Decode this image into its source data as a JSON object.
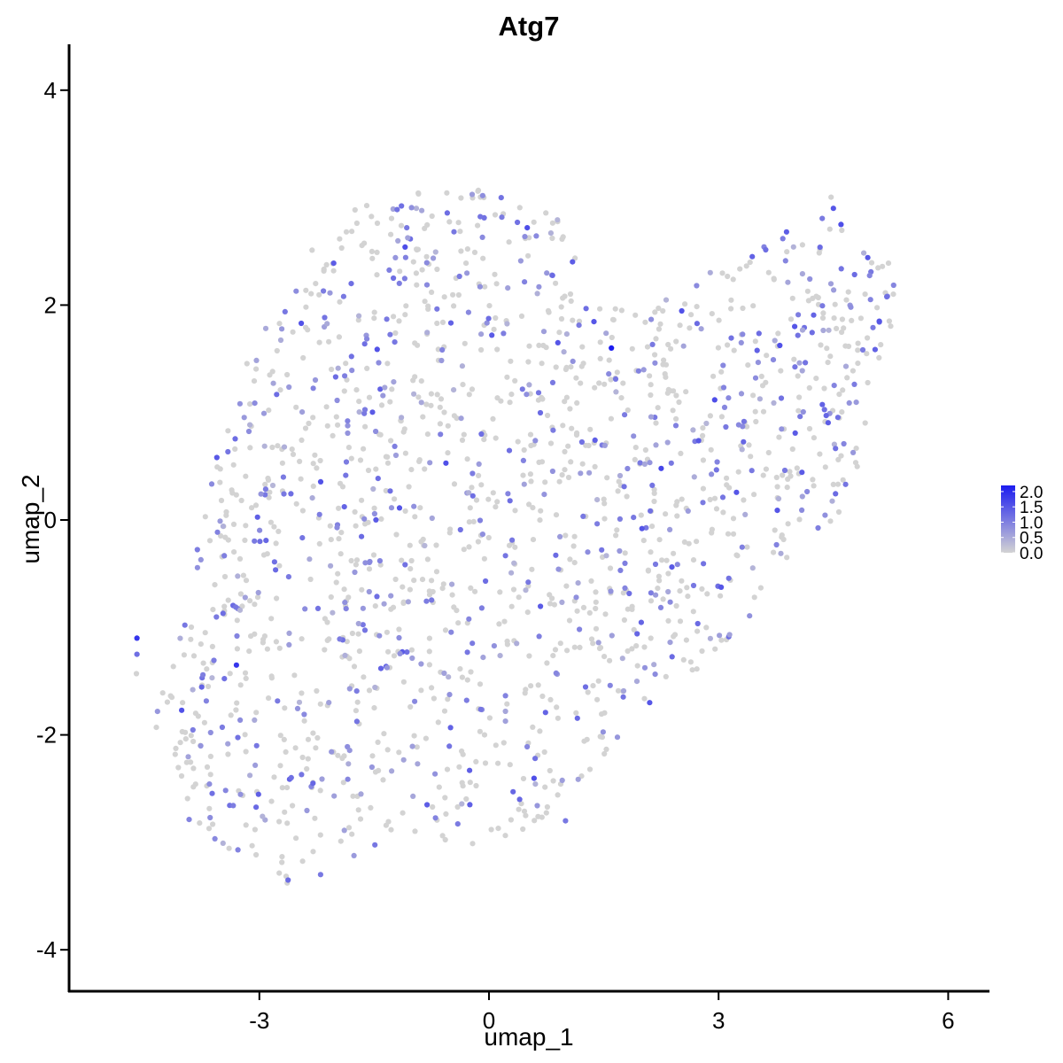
{
  "chart_data": {
    "type": "scatter",
    "title": "Atg7",
    "xlabel": "umap_1",
    "ylabel": "umap_2",
    "xlim": [
      -5.4,
      6.6
    ],
    "ylim": [
      -4.3,
      4.45
    ],
    "xticks": [
      -3,
      0,
      3,
      6
    ],
    "yticks": [
      4,
      2,
      0,
      -2,
      -4
    ],
    "xtick_labels": [
      "-3",
      "0",
      "3",
      "6"
    ],
    "ytick_labels": [
      "4",
      "2",
      "0",
      "-2",
      "-4"
    ],
    "grid": false,
    "legend_placement": "right",
    "color_scale": {
      "low_color": "#d3d3d3",
      "high_color": "#1c1cf0",
      "min": 0.0,
      "max": 2.2,
      "ticks": [
        2.0,
        1.5,
        1.0,
        0.5,
        0.0
      ],
      "tick_labels": [
        "2.0",
        "1.5",
        "1.0",
        "0.5",
        "0.0"
      ]
    },
    "points": [
      {
        "x": 1.6,
        "y": 1.6,
        "v": 2.2
      },
      {
        "x": -4.6,
        "y": -1.1,
        "v": 1.9
      },
      {
        "x": -3.3,
        "y": -1.35,
        "v": 1.9
      },
      {
        "x": 0.5,
        "y": 2.72,
        "v": 1.6
      },
      {
        "x": 2.25,
        "y": 0.48,
        "v": 1.7
      },
      {
        "x": 2.1,
        "y": -1.7,
        "v": 1.5
      },
      {
        "x": 4.6,
        "y": 2.75,
        "v": 1.6
      },
      {
        "x": 4.5,
        "y": 2.9,
        "v": 1.5
      },
      {
        "x": 5.1,
        "y": 1.85,
        "v": 1.5
      },
      {
        "x": 0.9,
        "y": 1.65,
        "v": 1.5
      },
      {
        "x": -0.25,
        "y": -2.65,
        "v": 1.4
      },
      {
        "x": 0.4,
        "y": -2.6,
        "v": 1.3
      },
      {
        "x": -4.6,
        "y": -1.25,
        "v": 1.2
      },
      {
        "x": -1.8,
        "y": 2.2,
        "v": 1.2
      },
      {
        "x": -2.3,
        "y": -2.45,
        "v": 1.3
      },
      {
        "x": -0.1,
        "y": 0.8,
        "v": 1.2
      },
      {
        "x": -2.2,
        "y": -3.3,
        "v": 1.1
      },
      {
        "x": 1.0,
        "y": -2.8,
        "v": 1.1
      }
    ]
  }
}
